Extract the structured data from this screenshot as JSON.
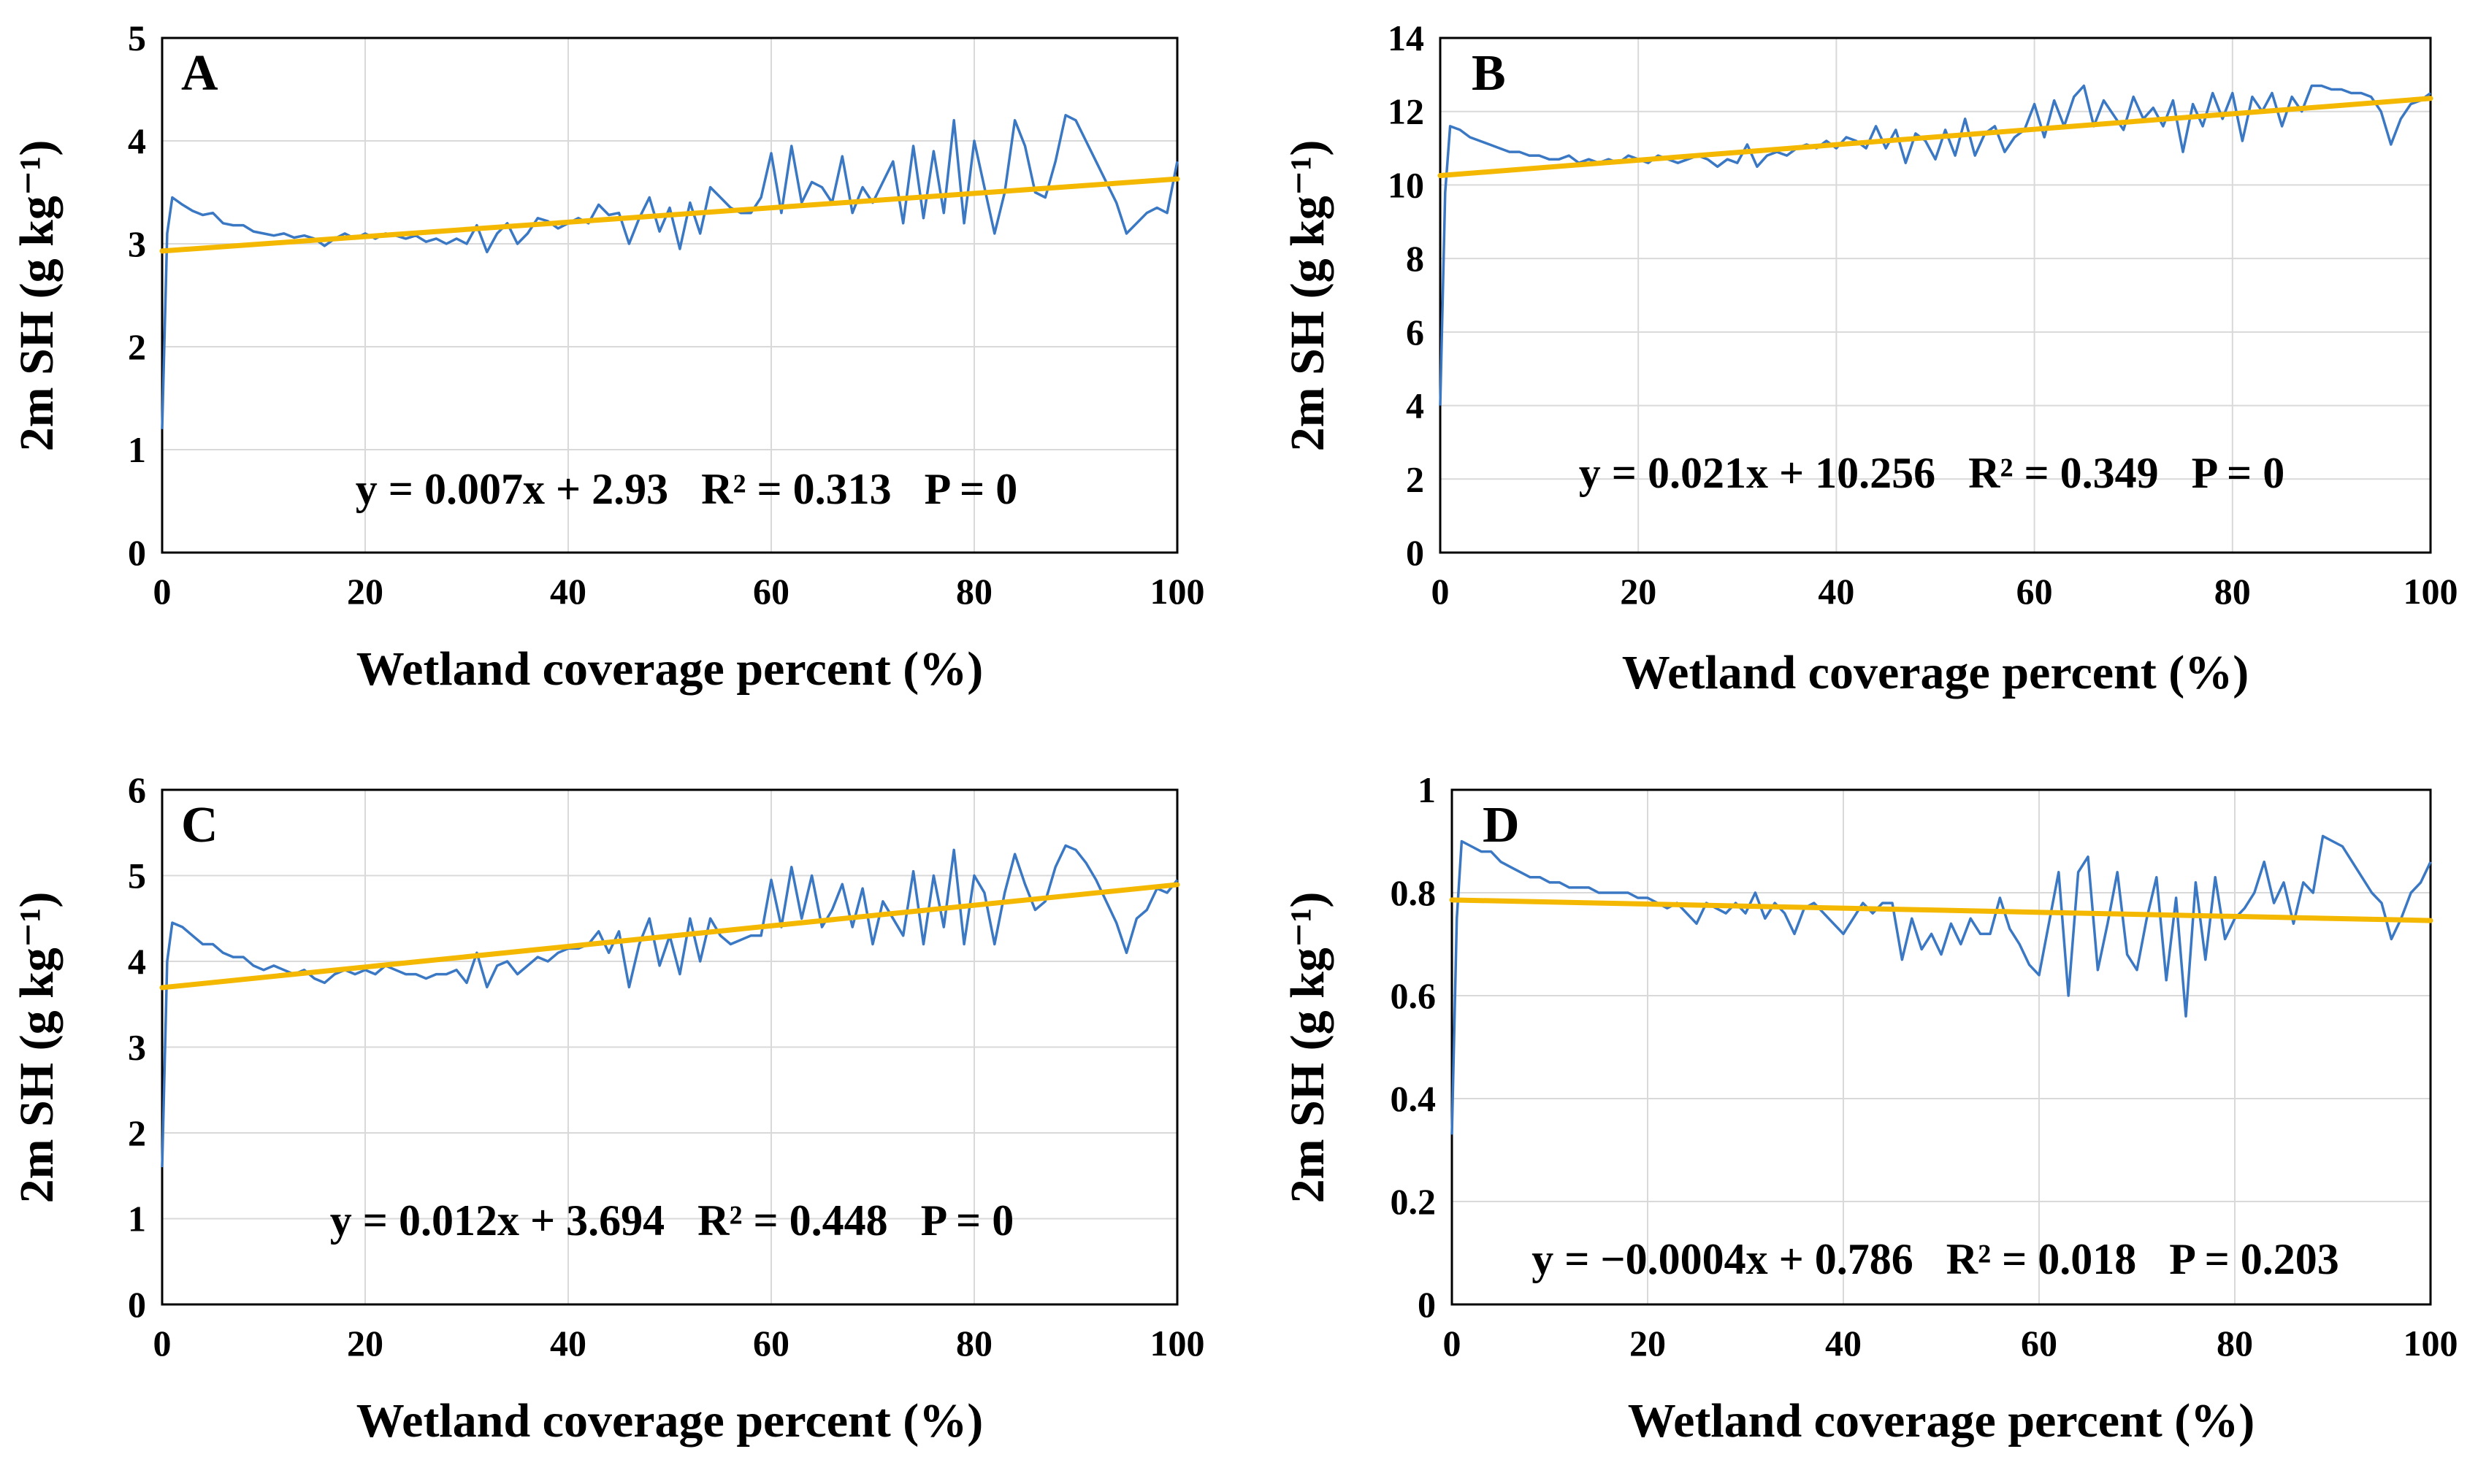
{
  "figure": {
    "description": "2m specific humidity vs wetland coverage percent"
  },
  "chart_data": [
    {
      "panel": "A",
      "type": "line",
      "xlabel": "Wetland coverage percent (%)",
      "ylabel": "2m SH (g kg⁻¹)",
      "xlim": [
        0,
        100
      ],
      "ylim": [
        0,
        5
      ],
      "xticks": [
        0,
        20,
        40,
        60,
        80,
        100
      ],
      "yticks": [
        0,
        1,
        2,
        3,
        4,
        5
      ],
      "grid": true,
      "series_color": "#3b78c4",
      "trend_color": "#f5b800",
      "series": [
        {
          "name": "2m SH",
          "x": [
            0,
            0.5,
            1,
            2,
            3,
            4,
            5,
            6,
            7,
            8,
            9,
            10,
            11,
            12,
            13,
            14,
            15,
            16,
            17,
            18,
            19,
            20,
            21,
            22,
            23,
            24,
            25,
            26,
            27,
            28,
            29,
            30,
            31,
            32,
            33,
            34,
            35,
            36,
            37,
            38,
            39,
            40,
            41,
            42,
            43,
            44,
            45,
            46,
            47,
            48,
            49,
            50,
            51,
            52,
            53,
            54,
            55,
            56,
            57,
            58,
            59,
            60,
            61,
            62,
            63,
            64,
            65,
            66,
            67,
            68,
            69,
            70,
            71,
            72,
            73,
            74,
            75,
            76,
            77,
            78,
            79,
            80,
            81,
            82,
            83,
            84,
            85,
            86,
            87,
            88,
            89,
            90,
            91,
            92,
            93,
            94,
            95,
            96,
            97,
            98,
            99,
            100
          ],
          "y": [
            1.2,
            3.1,
            3.45,
            3.38,
            3.32,
            3.28,
            3.3,
            3.2,
            3.18,
            3.18,
            3.12,
            3.1,
            3.08,
            3.1,
            3.06,
            3.08,
            3.05,
            2.98,
            3.05,
            3.1,
            3.05,
            3.1,
            3.05,
            3.1,
            3.08,
            3.05,
            3.08,
            3.02,
            3.05,
            3.0,
            3.05,
            3.0,
            3.18,
            2.92,
            3.1,
            3.2,
            3.0,
            3.1,
            3.25,
            3.22,
            3.15,
            3.2,
            3.25,
            3.2,
            3.38,
            3.28,
            3.3,
            3.0,
            3.25,
            3.45,
            3.12,
            3.35,
            2.95,
            3.4,
            3.1,
            3.55,
            3.45,
            3.35,
            3.3,
            3.3,
            3.45,
            3.88,
            3.3,
            3.95,
            3.4,
            3.6,
            3.55,
            3.4,
            3.85,
            3.3,
            3.55,
            3.4,
            3.6,
            3.8,
            3.2,
            3.95,
            3.25,
            3.9,
            3.3,
            4.2,
            3.2,
            4.0,
            3.55,
            3.1,
            3.5,
            4.2,
            3.95,
            3.5,
            3.45,
            3.8,
            4.25,
            4.2,
            4.0,
            3.8,
            3.6,
            3.4,
            3.1,
            3.2,
            3.3,
            3.35,
            3.3,
            3.8
          ]
        },
        {
          "name": "Linear trend",
          "x": [
            0,
            100
          ],
          "y": [
            2.93,
            3.63
          ]
        }
      ],
      "annotation": "y = 0.007x + 2.93   R² = 0.313   P = 0"
    },
    {
      "panel": "B",
      "type": "line",
      "xlabel": "Wetland coverage percent (%)",
      "ylabel": "2m SH (g kg⁻¹)",
      "xlim": [
        0,
        100
      ],
      "ylim": [
        0,
        14
      ],
      "xticks": [
        0,
        20,
        40,
        60,
        80,
        100
      ],
      "yticks": [
        0,
        2,
        4,
        6,
        8,
        10,
        12,
        14
      ],
      "grid": true,
      "series_color": "#3b78c4",
      "trend_color": "#f5b800",
      "series": [
        {
          "name": "2m SH",
          "x": [
            0,
            0.5,
            1,
            2,
            3,
            4,
            5,
            6,
            7,
            8,
            9,
            10,
            11,
            12,
            13,
            14,
            15,
            16,
            17,
            18,
            19,
            20,
            21,
            22,
            23,
            24,
            25,
            26,
            27,
            28,
            29,
            30,
            31,
            32,
            33,
            34,
            35,
            36,
            37,
            38,
            39,
            40,
            41,
            42,
            43,
            44,
            45,
            46,
            47,
            48,
            49,
            50,
            51,
            52,
            53,
            54,
            55,
            56,
            57,
            58,
            59,
            60,
            61,
            62,
            63,
            64,
            65,
            66,
            67,
            68,
            69,
            70,
            71,
            72,
            73,
            74,
            75,
            76,
            77,
            78,
            79,
            80,
            81,
            82,
            83,
            84,
            85,
            86,
            87,
            88,
            89,
            90,
            91,
            92,
            93,
            94,
            95,
            96,
            97,
            98,
            99,
            100
          ],
          "y": [
            4.0,
            9.8,
            11.6,
            11.5,
            11.3,
            11.2,
            11.1,
            11.0,
            10.9,
            10.9,
            10.8,
            10.8,
            10.7,
            10.7,
            10.8,
            10.6,
            10.7,
            10.6,
            10.7,
            10.6,
            10.8,
            10.7,
            10.6,
            10.8,
            10.7,
            10.6,
            10.7,
            10.8,
            10.7,
            10.5,
            10.7,
            10.6,
            11.1,
            10.5,
            10.8,
            10.9,
            10.8,
            11.0,
            11.1,
            11.0,
            11.2,
            11.0,
            11.3,
            11.2,
            11.0,
            11.6,
            11.0,
            11.5,
            10.6,
            11.4,
            11.2,
            10.7,
            11.5,
            10.8,
            11.8,
            10.8,
            11.4,
            11.6,
            10.9,
            11.3,
            11.5,
            12.2,
            11.3,
            12.3,
            11.6,
            12.4,
            12.7,
            11.6,
            12.3,
            11.9,
            11.5,
            12.4,
            11.8,
            12.1,
            11.6,
            12.3,
            10.9,
            12.2,
            11.6,
            12.5,
            11.8,
            12.5,
            11.2,
            12.4,
            12.0,
            12.5,
            11.6,
            12.4,
            12.0,
            12.7,
            12.7,
            12.6,
            12.6,
            12.5,
            12.5,
            12.4,
            12.0,
            11.1,
            11.8,
            12.2,
            12.3,
            12.5
          ]
        },
        {
          "name": "Linear trend",
          "x": [
            0,
            100
          ],
          "y": [
            10.256,
            12.356
          ]
        }
      ],
      "annotation": "y = 0.021x + 10.256   R² = 0.349   P = 0"
    },
    {
      "panel": "C",
      "type": "line",
      "xlabel": "Wetland coverage percent (%)",
      "ylabel": "2m SH (g kg⁻¹)",
      "xlim": [
        0,
        100
      ],
      "ylim": [
        0,
        6
      ],
      "xticks": [
        0,
        20,
        40,
        60,
        80,
        100
      ],
      "yticks": [
        0,
        1,
        2,
        3,
        4,
        5,
        6
      ],
      "grid": true,
      "series_color": "#3b78c4",
      "trend_color": "#f5b800",
      "series": [
        {
          "name": "2m SH",
          "x": [
            0,
            0.5,
            1,
            2,
            3,
            4,
            5,
            6,
            7,
            8,
            9,
            10,
            11,
            12,
            13,
            14,
            15,
            16,
            17,
            18,
            19,
            20,
            21,
            22,
            23,
            24,
            25,
            26,
            27,
            28,
            29,
            30,
            31,
            32,
            33,
            34,
            35,
            36,
            37,
            38,
            39,
            40,
            41,
            42,
            43,
            44,
            45,
            46,
            47,
            48,
            49,
            50,
            51,
            52,
            53,
            54,
            55,
            56,
            57,
            58,
            59,
            60,
            61,
            62,
            63,
            64,
            65,
            66,
            67,
            68,
            69,
            70,
            71,
            72,
            73,
            74,
            75,
            76,
            77,
            78,
            79,
            80,
            81,
            82,
            83,
            84,
            85,
            86,
            87,
            88,
            89,
            90,
            91,
            92,
            93,
            94,
            95,
            96,
            97,
            98,
            99,
            100
          ],
          "y": [
            1.6,
            4.0,
            4.45,
            4.4,
            4.3,
            4.2,
            4.2,
            4.1,
            4.05,
            4.05,
            3.95,
            3.9,
            3.95,
            3.9,
            3.85,
            3.9,
            3.8,
            3.75,
            3.85,
            3.9,
            3.85,
            3.9,
            3.85,
            3.95,
            3.9,
            3.85,
            3.85,
            3.8,
            3.85,
            3.85,
            3.9,
            3.75,
            4.1,
            3.7,
            3.95,
            4.0,
            3.85,
            3.95,
            4.05,
            4.0,
            4.1,
            4.15,
            4.15,
            4.2,
            4.35,
            4.1,
            4.35,
            3.7,
            4.2,
            4.5,
            3.95,
            4.3,
            3.85,
            4.5,
            4.0,
            4.5,
            4.3,
            4.2,
            4.25,
            4.3,
            4.3,
            4.95,
            4.4,
            5.1,
            4.5,
            5.0,
            4.4,
            4.6,
            4.9,
            4.4,
            4.85,
            4.2,
            4.7,
            4.5,
            4.3,
            5.05,
            4.2,
            5.0,
            4.4,
            5.3,
            4.2,
            5.0,
            4.8,
            4.2,
            4.8,
            5.25,
            4.9,
            4.6,
            4.7,
            5.1,
            5.35,
            5.3,
            5.15,
            4.95,
            4.7,
            4.45,
            4.1,
            4.5,
            4.6,
            4.85,
            4.8,
            4.95
          ]
        },
        {
          "name": "Linear trend",
          "x": [
            0,
            100
          ],
          "y": [
            3.694,
            4.894
          ]
        }
      ],
      "annotation": "y = 0.012x + 3.694   R² = 0.448   P = 0"
    },
    {
      "panel": "D",
      "type": "line",
      "xlabel": "Wetland coverage percent (%)",
      "ylabel": "2m SH (g kg⁻¹)",
      "xlim": [
        0,
        100
      ],
      "ylim": [
        0,
        1
      ],
      "xticks": [
        0,
        20,
        40,
        60,
        80,
        100
      ],
      "yticks": [
        0,
        0.2,
        0.4,
        0.6,
        0.8,
        1
      ],
      "grid": true,
      "series_color": "#3b78c4",
      "trend_color": "#f5b800",
      "series": [
        {
          "name": "2m SH",
          "x": [
            0,
            0.5,
            1,
            2,
            3,
            4,
            5,
            6,
            7,
            8,
            9,
            10,
            11,
            12,
            13,
            14,
            15,
            16,
            17,
            18,
            19,
            20,
            21,
            22,
            23,
            24,
            25,
            26,
            27,
            28,
            29,
            30,
            31,
            32,
            33,
            34,
            35,
            36,
            37,
            38,
            39,
            40,
            41,
            42,
            43,
            44,
            45,
            46,
            47,
            48,
            49,
            50,
            51,
            52,
            53,
            54,
            55,
            56,
            57,
            58,
            59,
            60,
            61,
            62,
            63,
            64,
            65,
            66,
            67,
            68,
            69,
            70,
            71,
            72,
            73,
            74,
            75,
            76,
            77,
            78,
            79,
            80,
            81,
            82,
            83,
            84,
            85,
            86,
            87,
            88,
            89,
            90,
            91,
            92,
            93,
            94,
            95,
            96,
            97,
            98,
            99,
            100
          ],
          "y": [
            0.33,
            0.75,
            0.9,
            0.89,
            0.88,
            0.88,
            0.86,
            0.85,
            0.84,
            0.83,
            0.83,
            0.82,
            0.82,
            0.81,
            0.81,
            0.81,
            0.8,
            0.8,
            0.8,
            0.8,
            0.79,
            0.79,
            0.78,
            0.77,
            0.78,
            0.76,
            0.74,
            0.78,
            0.77,
            0.76,
            0.78,
            0.76,
            0.8,
            0.75,
            0.78,
            0.76,
            0.72,
            0.77,
            0.78,
            0.76,
            0.74,
            0.72,
            0.75,
            0.78,
            0.76,
            0.78,
            0.78,
            0.67,
            0.75,
            0.69,
            0.72,
            0.68,
            0.74,
            0.7,
            0.75,
            0.72,
            0.72,
            0.79,
            0.73,
            0.7,
            0.66,
            0.64,
            0.74,
            0.84,
            0.6,
            0.84,
            0.87,
            0.65,
            0.74,
            0.84,
            0.68,
            0.65,
            0.75,
            0.83,
            0.63,
            0.79,
            0.56,
            0.82,
            0.67,
            0.83,
            0.71,
            0.75,
            0.77,
            0.8,
            0.86,
            0.78,
            0.82,
            0.74,
            0.82,
            0.8,
            0.91,
            0.9,
            0.89,
            0.86,
            0.83,
            0.8,
            0.78,
            0.71,
            0.75,
            0.8,
            0.82,
            0.86
          ]
        },
        {
          "name": "Linear trend",
          "x": [
            0,
            100
          ],
          "y": [
            0.786,
            0.746
          ]
        }
      ],
      "annotation": "y = −0.0004x + 0.786   R² = 0.018   P = 0.203"
    }
  ]
}
